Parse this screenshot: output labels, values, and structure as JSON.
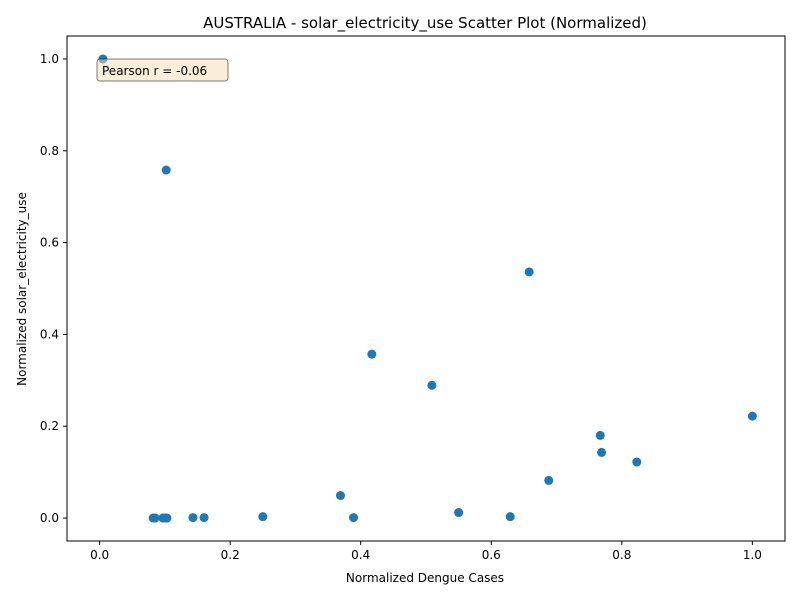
{
  "chart_data": {
    "type": "scatter",
    "title": "AUSTRALIA - solar_electricity_use Scatter Plot (Normalized)",
    "xlabel": "Normalized Dengue Cases",
    "ylabel": "Normalized solar_electricity_use",
    "xlim": [
      -0.05,
      1.05
    ],
    "ylim": [
      -0.05,
      1.05
    ],
    "xticks": [
      0.0,
      0.2,
      0.4,
      0.6,
      0.8,
      1.0
    ],
    "xtick_labels": [
      "0.0",
      "0.2",
      "0.4",
      "0.6",
      "0.8",
      "1.0"
    ],
    "yticks": [
      0.0,
      0.2,
      0.4,
      0.6,
      0.8,
      1.0
    ],
    "ytick_labels": [
      "0.0",
      "0.2",
      "0.4",
      "0.6",
      "0.8",
      "1.0"
    ],
    "grid": false,
    "annotation": "Pearson r = -0.06",
    "marker_color": "#1f77b4",
    "annotation_bg": "#f5deb3",
    "points": [
      {
        "x": 0.005,
        "y": 1.0
      },
      {
        "x": 0.102,
        "y": 0.758
      },
      {
        "x": 0.658,
        "y": 0.536
      },
      {
        "x": 0.417,
        "y": 0.357
      },
      {
        "x": 0.509,
        "y": 0.289
      },
      {
        "x": 1.0,
        "y": 0.222
      },
      {
        "x": 0.767,
        "y": 0.18
      },
      {
        "x": 0.769,
        "y": 0.143
      },
      {
        "x": 0.823,
        "y": 0.122
      },
      {
        "x": 0.688,
        "y": 0.082
      },
      {
        "x": 0.369,
        "y": 0.049
      },
      {
        "x": 0.55,
        "y": 0.012
      },
      {
        "x": 0.25,
        "y": 0.003
      },
      {
        "x": 0.629,
        "y": 0.003
      },
      {
        "x": 0.389,
        "y": 0.001
      },
      {
        "x": 0.143,
        "y": 0.001
      },
      {
        "x": 0.16,
        "y": 0.001
      },
      {
        "x": 0.082,
        "y": 0.0
      },
      {
        "x": 0.085,
        "y": 0.0
      },
      {
        "x": 0.097,
        "y": 0.0
      },
      {
        "x": 0.1,
        "y": 0.0
      },
      {
        "x": 0.103,
        "y": 0.0
      }
    ]
  }
}
